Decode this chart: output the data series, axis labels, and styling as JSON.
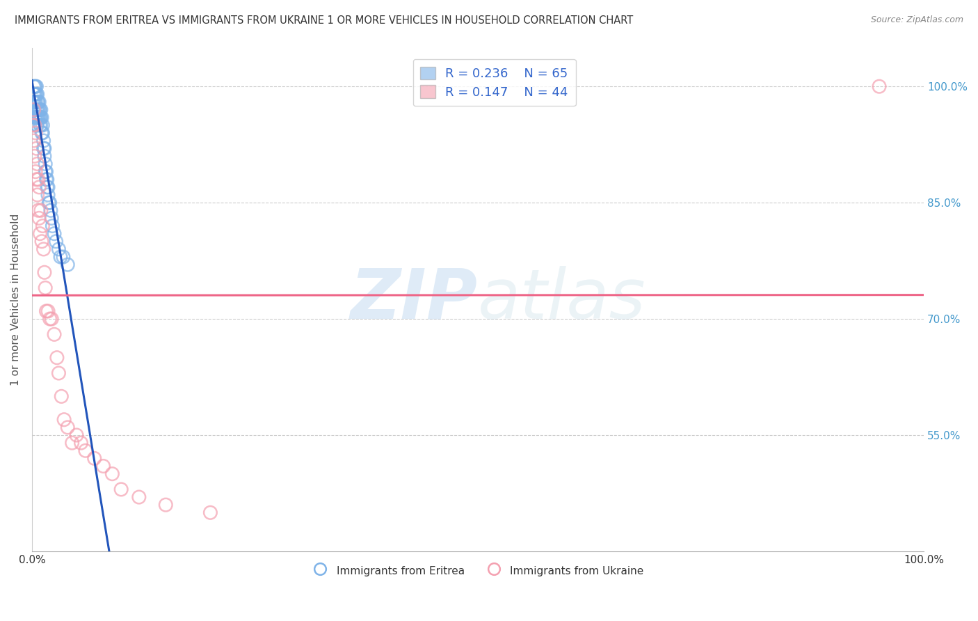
{
  "title": "IMMIGRANTS FROM ERITREA VS IMMIGRANTS FROM UKRAINE 1 OR MORE VEHICLES IN HOUSEHOLD CORRELATION CHART",
  "source": "Source: ZipAtlas.com",
  "ylabel": "1 or more Vehicles in Household",
  "ytick_labels": [
    "100.0%",
    "85.0%",
    "70.0%",
    "55.0%"
  ],
  "ytick_values": [
    1.0,
    0.85,
    0.7,
    0.55
  ],
  "xlim": [
    0.0,
    1.0
  ],
  "ylim": [
    0.4,
    1.05
  ],
  "legend_r1": "R = 0.236",
  "legend_n1": "N = 65",
  "legend_r2": "R = 0.147",
  "legend_n2": "N = 44",
  "eritrea_color": "#7fb3e8",
  "ukraine_color": "#f4a0b0",
  "trendline1_color": "#2255bb",
  "trendline2_color": "#ee6688",
  "watermark_zip": "ZIP",
  "watermark_atlas": "atlas",
  "eritrea_x": [
    0.001,
    0.001,
    0.002,
    0.002,
    0.002,
    0.002,
    0.003,
    0.003,
    0.003,
    0.003,
    0.003,
    0.003,
    0.004,
    0.004,
    0.004,
    0.004,
    0.005,
    0.005,
    0.005,
    0.005,
    0.005,
    0.006,
    0.006,
    0.006,
    0.006,
    0.006,
    0.007,
    0.007,
    0.007,
    0.008,
    0.008,
    0.008,
    0.009,
    0.009,
    0.009,
    0.01,
    0.01,
    0.01,
    0.011,
    0.011,
    0.012,
    0.012,
    0.013,
    0.013,
    0.014,
    0.014,
    0.015,
    0.015,
    0.016,
    0.016,
    0.017,
    0.017,
    0.018,
    0.018,
    0.019,
    0.02,
    0.021,
    0.022,
    0.023,
    0.025,
    0.027,
    0.03,
    0.032,
    0.035,
    0.04
  ],
  "eritrea_y": [
    0.98,
    0.97,
    1.0,
    0.99,
    0.98,
    0.97,
    1.0,
    0.99,
    0.98,
    0.97,
    0.96,
    0.95,
    1.0,
    0.99,
    0.98,
    0.96,
    1.0,
    0.99,
    0.97,
    0.96,
    0.95,
    0.99,
    0.98,
    0.97,
    0.96,
    0.95,
    0.98,
    0.97,
    0.96,
    0.98,
    0.97,
    0.96,
    0.97,
    0.96,
    0.95,
    0.97,
    0.96,
    0.95,
    0.96,
    0.94,
    0.95,
    0.94,
    0.93,
    0.92,
    0.92,
    0.91,
    0.9,
    0.89,
    0.89,
    0.88,
    0.88,
    0.87,
    0.87,
    0.86,
    0.85,
    0.85,
    0.84,
    0.83,
    0.82,
    0.81,
    0.8,
    0.79,
    0.78,
    0.78,
    0.77
  ],
  "ukraine_x": [
    0.001,
    0.002,
    0.002,
    0.003,
    0.003,
    0.004,
    0.004,
    0.005,
    0.005,
    0.006,
    0.006,
    0.007,
    0.007,
    0.008,
    0.008,
    0.009,
    0.01,
    0.011,
    0.012,
    0.013,
    0.014,
    0.015,
    0.016,
    0.018,
    0.02,
    0.022,
    0.025,
    0.028,
    0.03,
    0.033,
    0.036,
    0.04,
    0.045,
    0.05,
    0.055,
    0.06,
    0.07,
    0.08,
    0.09,
    0.1,
    0.12,
    0.15,
    0.2,
    0.95
  ],
  "ukraine_y": [
    0.95,
    0.97,
    0.93,
    0.95,
    0.91,
    0.94,
    0.89,
    0.92,
    0.88,
    0.9,
    0.86,
    0.88,
    0.84,
    0.87,
    0.83,
    0.81,
    0.84,
    0.8,
    0.82,
    0.79,
    0.76,
    0.74,
    0.71,
    0.71,
    0.7,
    0.7,
    0.68,
    0.65,
    0.63,
    0.6,
    0.57,
    0.56,
    0.54,
    0.55,
    0.54,
    0.53,
    0.52,
    0.51,
    0.5,
    0.48,
    0.47,
    0.46,
    0.45,
    1.0
  ]
}
